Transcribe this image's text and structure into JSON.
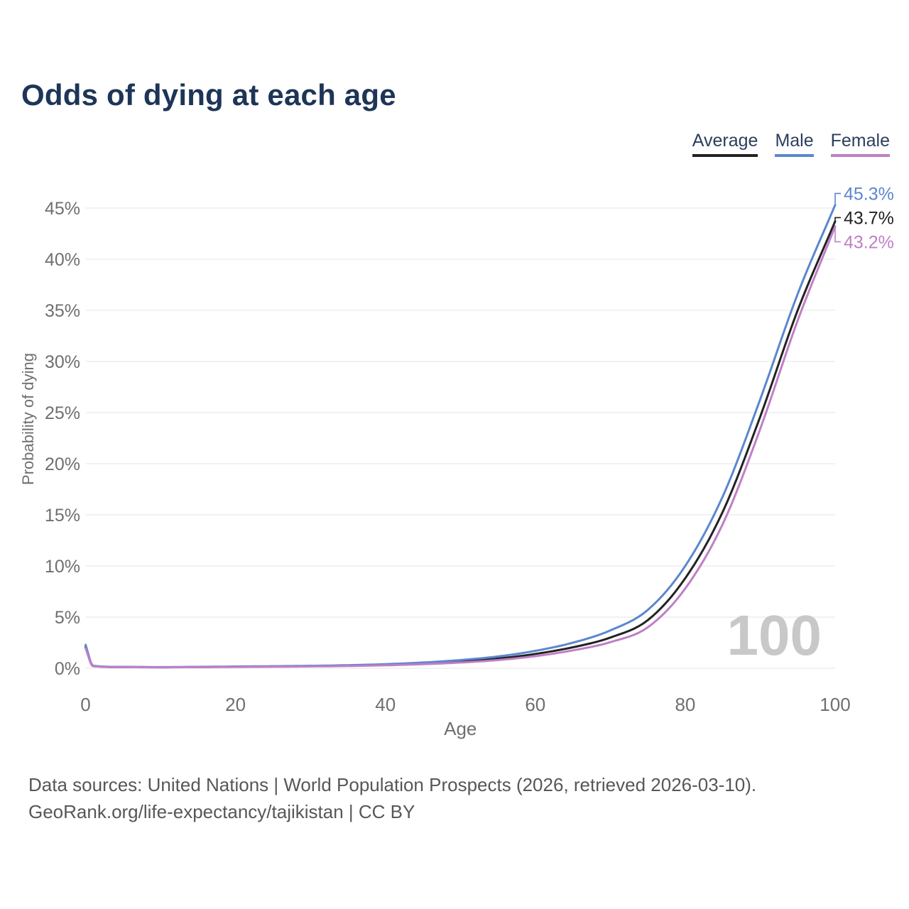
{
  "title": "Odds of dying at each age",
  "legend": [
    {
      "label": "Average",
      "color": "#222222"
    },
    {
      "label": "Male",
      "color": "#5b87ce"
    },
    {
      "label": "Female",
      "color": "#bf7fc6"
    }
  ],
  "footer": {
    "line1": "Data sources: United Nations | World Population Prospects (2026, retrieved 2026-03-10).",
    "line2": "GeoRank.org/life-expectancy/tajikistan | CC BY"
  },
  "chart_data": {
    "type": "line",
    "title": "Odds of dying at each age",
    "xlabel": "Age",
    "ylabel": "Probability of dying",
    "xlim": [
      0,
      100
    ],
    "ylim": [
      0,
      46
    ],
    "grid": "horizontal",
    "legend_position": "top-right",
    "annotation": "100",
    "x_ticks": [
      {
        "v": 0,
        "label": "0"
      },
      {
        "v": 20,
        "label": "20"
      },
      {
        "v": 40,
        "label": "40"
      },
      {
        "v": 60,
        "label": "60"
      },
      {
        "v": 80,
        "label": "80"
      },
      {
        "v": 100,
        "label": "100"
      }
    ],
    "y_ticks": [
      {
        "v": 0,
        "label": "0%"
      },
      {
        "v": 5,
        "label": "5%"
      },
      {
        "v": 10,
        "label": "10%"
      },
      {
        "v": 15,
        "label": "15%"
      },
      {
        "v": 20,
        "label": "20%"
      },
      {
        "v": 25,
        "label": "25%"
      },
      {
        "v": 30,
        "label": "30%"
      },
      {
        "v": 35,
        "label": "35%"
      },
      {
        "v": 40,
        "label": "40%"
      },
      {
        "v": 45,
        "label": "45%"
      }
    ],
    "ages": [
      0,
      1,
      5,
      10,
      15,
      20,
      25,
      30,
      35,
      40,
      45,
      50,
      55,
      60,
      65,
      70,
      75,
      80,
      85,
      90,
      95,
      100
    ],
    "series": [
      {
        "name": "Average",
        "color": "#222222",
        "end_label": "43.7%",
        "values_pct": [
          2.1,
          0.22,
          0.12,
          0.1,
          0.12,
          0.15,
          0.18,
          0.21,
          0.26,
          0.34,
          0.47,
          0.66,
          0.95,
          1.4,
          2.05,
          3.0,
          4.7,
          8.8,
          15.3,
          24.6,
          35.0,
          43.7
        ]
      },
      {
        "name": "Male",
        "color": "#5b87ce",
        "end_label": "45.3%",
        "values_pct": [
          2.3,
          0.25,
          0.13,
          0.11,
          0.14,
          0.17,
          0.2,
          0.24,
          0.3,
          0.4,
          0.56,
          0.8,
          1.15,
          1.7,
          2.5,
          3.7,
          5.7,
          10.0,
          16.8,
          26.3,
          36.6,
          45.3
        ]
      },
      {
        "name": "Female",
        "color": "#bf7fc6",
        "end_label": "43.2%",
        "values_pct": [
          1.95,
          0.2,
          0.11,
          0.09,
          0.11,
          0.13,
          0.15,
          0.18,
          0.22,
          0.29,
          0.4,
          0.56,
          0.8,
          1.18,
          1.75,
          2.55,
          4.0,
          7.8,
          14.1,
          23.4,
          34.0,
          43.2
        ]
      }
    ]
  }
}
